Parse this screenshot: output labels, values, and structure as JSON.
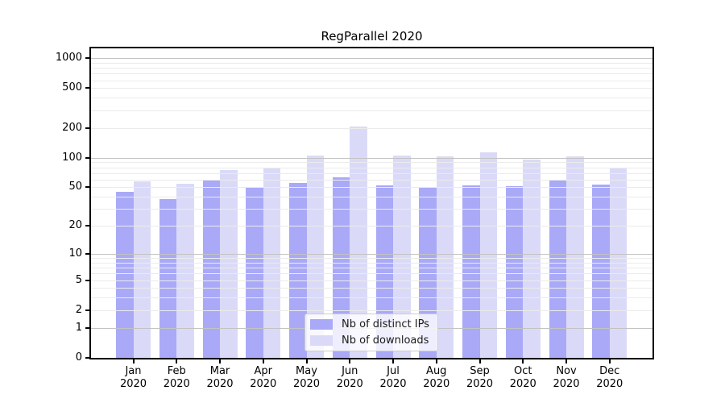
{
  "chart_data": {
    "type": "bar",
    "title": "RegParallel 2020",
    "xlabel": "",
    "ylabel": "",
    "yscale": "log1p",
    "ylim": [
      0,
      1250
    ],
    "grid": true,
    "legend_position": "lower center",
    "categories": [
      "Jan",
      "Feb",
      "Mar",
      "Apr",
      "May",
      "Jun",
      "Jul",
      "Aug",
      "Sep",
      "Oct",
      "Nov",
      "Dec"
    ],
    "x_tick_line2": "2020",
    "y_ticks": [
      0,
      1,
      2,
      5,
      10,
      20,
      50,
      100,
      200,
      500,
      1000
    ],
    "gridline_minor_values": [
      2,
      3,
      4,
      5,
      6,
      7,
      8,
      9,
      20,
      30,
      40,
      50,
      60,
      70,
      80,
      90,
      200,
      300,
      400,
      500,
      600,
      700,
      800,
      900
    ],
    "gridline_major_values": [
      1,
      10,
      100,
      1000
    ],
    "series": [
      {
        "name": "Nb of distinct IPs",
        "color": "#a9a9f8",
        "values": [
          45,
          38,
          60,
          49,
          55,
          63,
          52,
          50,
          52,
          51,
          59,
          53
        ]
      },
      {
        "name": "Nb of downloads",
        "color": "#dadaf8",
        "values": [
          58,
          54,
          75,
          78,
          105,
          207,
          105,
          103,
          113,
          96,
          103,
          80
        ]
      }
    ]
  }
}
